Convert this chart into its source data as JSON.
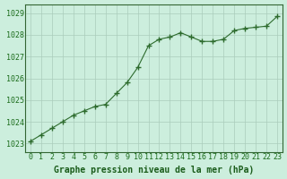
{
  "x": [
    0,
    1,
    2,
    3,
    4,
    5,
    6,
    7,
    8,
    9,
    10,
    11,
    12,
    13,
    14,
    15,
    16,
    17,
    18,
    19,
    20,
    21,
    22,
    23
  ],
  "y": [
    1023.1,
    1023.4,
    1023.7,
    1024.0,
    1024.3,
    1024.5,
    1024.7,
    1024.8,
    1025.3,
    1025.8,
    1026.5,
    1027.5,
    1027.8,
    1027.9,
    1028.1,
    1027.9,
    1027.7,
    1027.7,
    1027.8,
    1028.2,
    1028.3,
    1028.35,
    1028.4,
    1028.85
  ],
  "line_color": "#2d6b2d",
  "marker": "+",
  "marker_size": 4,
  "marker_linewidth": 1.0,
  "linewidth": 0.8,
  "bg_color": "#cceedd",
  "grid_color": "#aaccbb",
  "border_color": "#336633",
  "xlabel": "Graphe pression niveau de la mer (hPa)",
  "xlabel_color": "#1a5c1a",
  "xlabel_fontsize": 7,
  "ylabel_ticks": [
    1023,
    1024,
    1025,
    1026,
    1027,
    1028,
    1029
  ],
  "xtick_labels": [
    "0",
    "1",
    "2",
    "3",
    "4",
    "5",
    "6",
    "7",
    "8",
    "9",
    "10",
    "11",
    "12",
    "13",
    "14",
    "15",
    "16",
    "17",
    "18",
    "19",
    "20",
    "21",
    "22",
    "23"
  ],
  "ylim": [
    1022.6,
    1029.4
  ],
  "xlim": [
    -0.5,
    23.5
  ],
  "tick_color": "#1a6b1a",
  "tick_fontsize": 6,
  "ytick_fontsize": 6
}
